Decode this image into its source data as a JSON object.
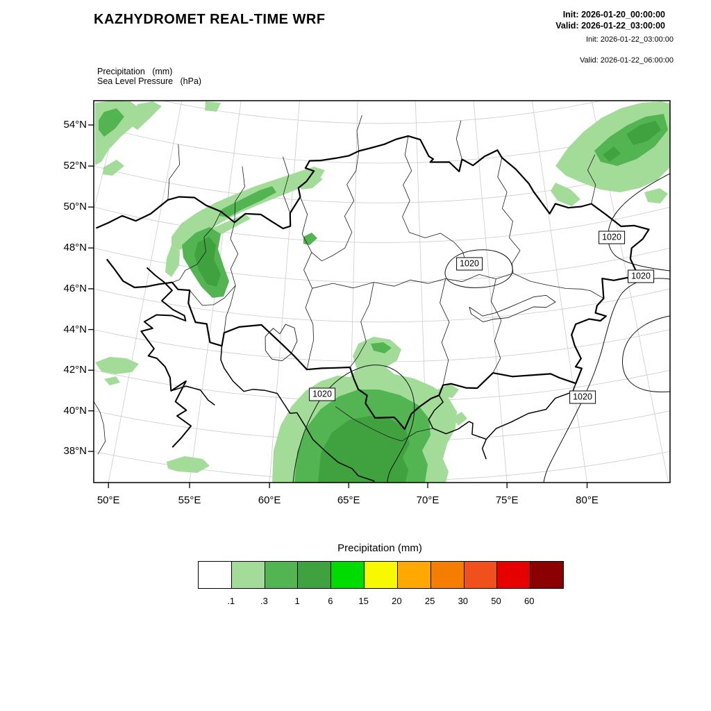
{
  "header": {
    "title": "KAZHYDROMET REAL-TIME WRF",
    "init_main": "Init: 2026-01-20_00:00:00",
    "valid_main": "Valid: 2026-01-22_03:00:00",
    "init_sub": "Init: 2026-01-22_03:00:00",
    "valid_sub": "Valid: 2026-01-22_06:00:00"
  },
  "fields": {
    "precipitation_label": "Precipitation   (mm)",
    "pressure_label": "Sea Level Pressure   (hPa)"
  },
  "map": {
    "lat_ticks": [
      "54°N",
      "52°N",
      "50°N",
      "48°N",
      "46°N",
      "44°N",
      "42°N",
      "40°N",
      "38°N"
    ],
    "lat_values": [
      54,
      52,
      50,
      48,
      46,
      44,
      42,
      40,
      38
    ],
    "lon_ticks": [
      "50°E",
      "55°E",
      "60°E",
      "65°E",
      "70°E",
      "75°E",
      "80°E"
    ],
    "lon_values": [
      50,
      55,
      60,
      65,
      70,
      75,
      80
    ],
    "pressure_contour_label": "1020",
    "pressure_label_count": 5
  },
  "legend": {
    "title": "Precipitation (mm)",
    "colors": [
      "#ffffff",
      "#a3dc99",
      "#52b552",
      "#3fa23f",
      "#00dc00",
      "#f8f800",
      "#ffa800",
      "#f57d00",
      "#f0511c",
      "#e60000",
      "#8b0000"
    ],
    "thresholds": [
      ".1",
      ".3",
      "1",
      "6",
      "15",
      "20",
      "25",
      "30",
      "50",
      "60"
    ]
  }
}
